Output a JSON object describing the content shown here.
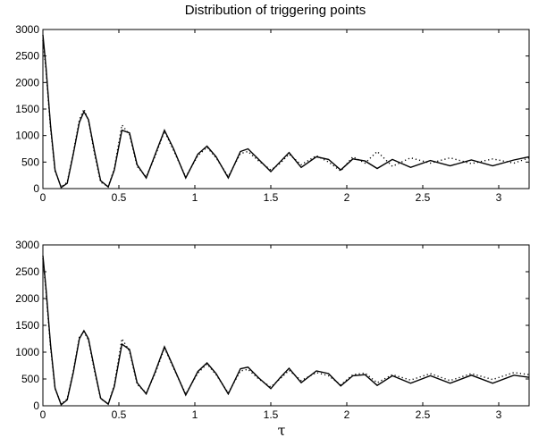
{
  "figure": {
    "title": "Distribution of triggering points",
    "xlabel": "τ"
  },
  "chart_data": [
    {
      "type": "line",
      "title": "Distribution of triggering points",
      "xlabel": "",
      "ylabel": "",
      "xlim": [
        0,
        3.2
      ],
      "ylim": [
        0,
        3000
      ],
      "xticks": [
        0,
        0.5,
        1,
        1.5,
        2,
        2.5,
        3
      ],
      "xtick_labels": [
        "0",
        "0.5",
        "1",
        "1.5",
        "2",
        "2.5",
        "3"
      ],
      "yticks": [
        0,
        500,
        1000,
        1500,
        2000,
        2500,
        3000
      ],
      "ytick_labels": [
        "0",
        "500",
        "1000",
        "1500",
        "2000",
        "2500",
        "3000"
      ],
      "grid": false,
      "series": [
        {
          "style": "solid",
          "x": [
            0,
            0.02,
            0.05,
            0.08,
            0.12,
            0.16,
            0.2,
            0.24,
            0.27,
            0.3,
            0.34,
            0.38,
            0.43,
            0.47,
            0.52,
            0.57,
            0.62,
            0.68,
            0.74,
            0.8,
            0.86,
            0.94,
            1.02,
            1.08,
            1.14,
            1.22,
            1.3,
            1.35,
            1.42,
            1.5,
            1.56,
            1.62,
            1.7,
            1.8,
            1.88,
            1.96,
            2.04,
            2.12,
            2.2,
            2.3,
            2.42,
            2.55,
            2.68,
            2.82,
            2.96,
            3.1,
            3.2
          ],
          "y": [
            2900,
            2300,
            1200,
            350,
            20,
            100,
            650,
            1250,
            1450,
            1300,
            700,
            150,
            30,
            350,
            1100,
            1050,
            450,
            200,
            650,
            1100,
            750,
            200,
            650,
            800,
            600,
            200,
            700,
            750,
            550,
            320,
            500,
            680,
            400,
            600,
            550,
            350,
            560,
            520,
            380,
            550,
            400,
            530,
            430,
            540,
            430,
            540,
            600
          ]
        },
        {
          "style": "dotted",
          "x": [
            0,
            0.02,
            0.05,
            0.08,
            0.12,
            0.16,
            0.2,
            0.24,
            0.27,
            0.3,
            0.34,
            0.38,
            0.43,
            0.47,
            0.52,
            0.57,
            0.62,
            0.68,
            0.74,
            0.8,
            0.86,
            0.94,
            1.02,
            1.08,
            1.14,
            1.22,
            1.3,
            1.35,
            1.42,
            1.5,
            1.56,
            1.62,
            1.7,
            1.8,
            1.88,
            1.96,
            2.04,
            2.12,
            2.2,
            2.3,
            2.42,
            2.55,
            2.68,
            2.82,
            2.96,
            3.1,
            3.2
          ],
          "y": [
            2800,
            2250,
            1150,
            330,
            30,
            120,
            680,
            1300,
            1500,
            1280,
            650,
            120,
            40,
            380,
            1200,
            1020,
            420,
            220,
            620,
            1080,
            720,
            220,
            620,
            780,
            580,
            230,
            660,
            700,
            520,
            350,
            470,
            650,
            450,
            620,
            500,
            330,
            600,
            480,
            700,
            420,
            580,
            480,
            580,
            470,
            560,
            480,
            580
          ]
        }
      ]
    },
    {
      "type": "line",
      "title": "",
      "xlabel": "τ",
      "ylabel": "",
      "xlim": [
        0,
        3.2
      ],
      "ylim": [
        0,
        3000
      ],
      "xticks": [
        0,
        0.5,
        1,
        1.5,
        2,
        2.5,
        3
      ],
      "xtick_labels": [
        "0",
        "0.5",
        "1",
        "1.5",
        "2",
        "2.5",
        "3"
      ],
      "yticks": [
        0,
        500,
        1000,
        1500,
        2000,
        2500,
        3000
      ],
      "ytick_labels": [
        "0",
        "500",
        "1000",
        "1500",
        "2000",
        "2500",
        "3000"
      ],
      "grid": false,
      "series": [
        {
          "style": "solid",
          "x": [
            0,
            0.02,
            0.05,
            0.08,
            0.12,
            0.16,
            0.2,
            0.24,
            0.27,
            0.3,
            0.34,
            0.38,
            0.43,
            0.47,
            0.52,
            0.57,
            0.62,
            0.68,
            0.74,
            0.8,
            0.86,
            0.94,
            1.02,
            1.08,
            1.14,
            1.22,
            1.3,
            1.35,
            1.42,
            1.5,
            1.56,
            1.62,
            1.7,
            1.8,
            1.88,
            1.96,
            2.04,
            2.12,
            2.2,
            2.3,
            2.42,
            2.55,
            2.68,
            2.82,
            2.96,
            3.1,
            3.2
          ],
          "y": [
            2800,
            2200,
            1150,
            330,
            20,
            110,
            620,
            1250,
            1400,
            1250,
            680,
            140,
            30,
            360,
            1150,
            1050,
            430,
            220,
            640,
            1100,
            720,
            200,
            640,
            800,
            600,
            220,
            690,
            720,
            520,
            320,
            520,
            700,
            430,
            650,
            600,
            370,
            560,
            580,
            380,
            560,
            420,
            560,
            420,
            570,
            420,
            570,
            530
          ]
        },
        {
          "style": "dotted",
          "x": [
            0,
            0.02,
            0.05,
            0.08,
            0.12,
            0.16,
            0.2,
            0.24,
            0.27,
            0.3,
            0.34,
            0.38,
            0.43,
            0.47,
            0.52,
            0.57,
            0.62,
            0.68,
            0.74,
            0.8,
            0.86,
            0.94,
            1.02,
            1.08,
            1.14,
            1.22,
            1.3,
            1.35,
            1.42,
            1.5,
            1.56,
            1.62,
            1.7,
            1.8,
            1.88,
            1.96,
            2.04,
            2.12,
            2.2,
            2.3,
            2.42,
            2.55,
            2.68,
            2.82,
            2.96,
            3.1,
            3.2
          ],
          "y": [
            2750,
            2150,
            1100,
            320,
            30,
            130,
            650,
            1280,
            1380,
            1220,
            640,
            130,
            40,
            390,
            1250,
            1020,
            400,
            240,
            610,
            1080,
            700,
            220,
            610,
            780,
            580,
            240,
            650,
            680,
            500,
            350,
            500,
            660,
            470,
            620,
            560,
            390,
            580,
            610,
            430,
            580,
            480,
            600,
            470,
            600,
            490,
            620,
            580
          ]
        }
      ]
    }
  ]
}
